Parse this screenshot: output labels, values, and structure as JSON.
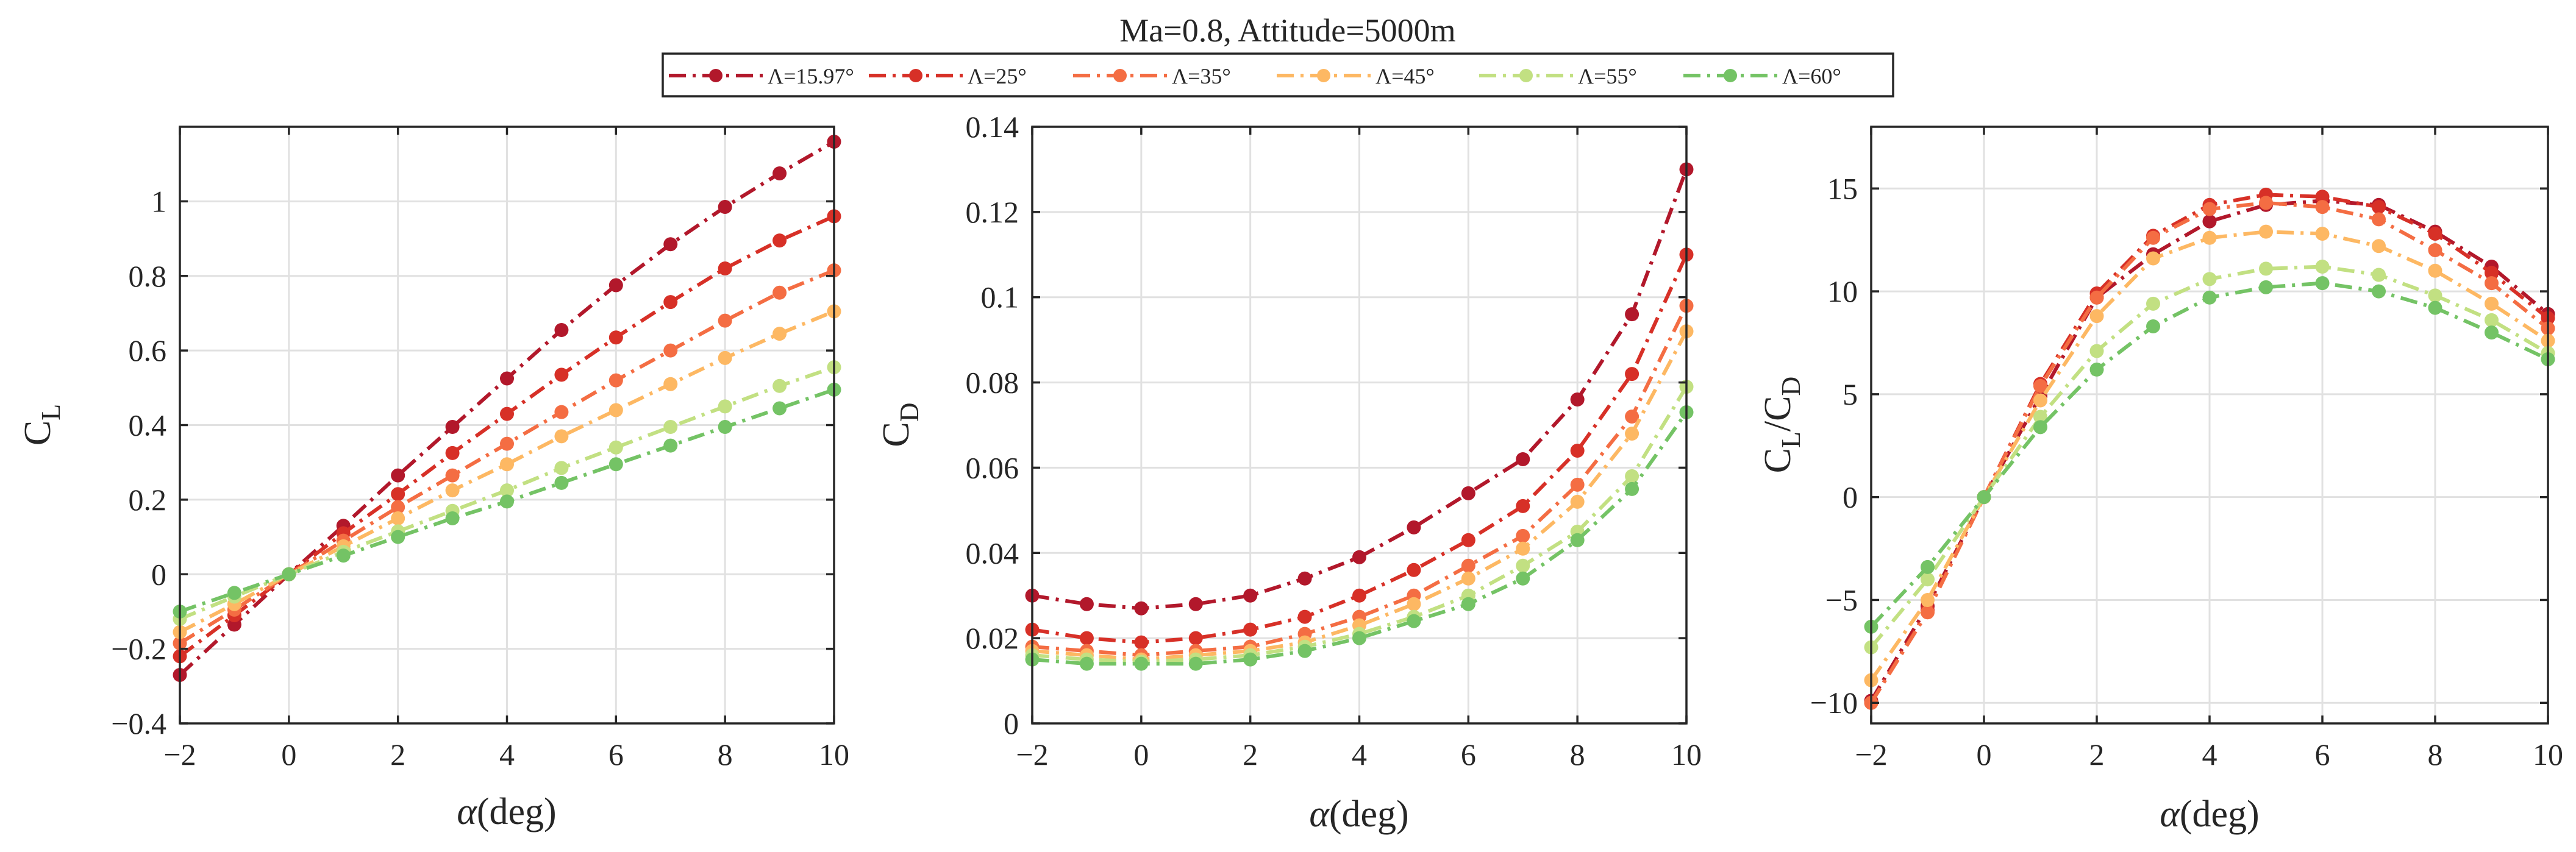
{
  "figure_title": "Ma=0.8, Attitude=5000m",
  "legend": {
    "entries": [
      {
        "label": "Λ=15.97°",
        "color": "#b2182b"
      },
      {
        "label": "Λ=25°",
        "color": "#d73027"
      },
      {
        "label": "Λ=35°",
        "color": "#f46d43"
      },
      {
        "label": "Λ=45°",
        "color": "#fdb863"
      },
      {
        "label": "Λ=55°",
        "color": "#c2e082"
      },
      {
        "label": "Λ=60°",
        "color": "#74c365"
      }
    ]
  },
  "chart_data": [
    {
      "type": "line",
      "id": "cl",
      "title": "",
      "xlabel": "α(deg)",
      "ylabel_main": "C",
      "ylabel_sub": "L",
      "xlim": [
        -2,
        10
      ],
      "ylim": [
        -0.4,
        1.2
      ],
      "xticks": [
        -2,
        0,
        2,
        4,
        6,
        8,
        10
      ],
      "xtick_labels": [
        "−2",
        "0",
        "2",
        "4",
        "6",
        "8",
        "10"
      ],
      "yticks": [
        -0.4,
        -0.2,
        0,
        0.2,
        0.4,
        0.6,
        0.8,
        1
      ],
      "ytick_labels": [
        "−0.4",
        "−0.2",
        "0",
        "0.2",
        "0.4",
        "0.6",
        "0.8",
        "1"
      ],
      "grid": true,
      "x": [
        -2,
        -1,
        0,
        1,
        2,
        3,
        4,
        5,
        6,
        7,
        8,
        9,
        10
      ],
      "series": [
        {
          "name": "Λ=15.97°",
          "values": [
            -0.27,
            -0.135,
            0,
            0.13,
            0.265,
            0.395,
            0.525,
            0.655,
            0.775,
            0.885,
            0.985,
            1.075,
            1.16
          ]
        },
        {
          "name": "Λ=25°",
          "values": [
            -0.22,
            -0.11,
            0,
            0.11,
            0.215,
            0.325,
            0.43,
            0.535,
            0.635,
            0.73,
            0.82,
            0.895,
            0.96
          ]
        },
        {
          "name": "Λ=35°",
          "values": [
            -0.185,
            -0.095,
            0,
            0.09,
            0.18,
            0.265,
            0.35,
            0.435,
            0.52,
            0.6,
            0.68,
            0.755,
            0.815
          ]
        },
        {
          "name": "Λ=45°",
          "values": [
            -0.155,
            -0.08,
            0,
            0.075,
            0.15,
            0.225,
            0.295,
            0.37,
            0.44,
            0.51,
            0.58,
            0.645,
            0.705
          ]
        },
        {
          "name": "Λ=55°",
          "values": [
            -0.12,
            -0.06,
            0,
            0.06,
            0.115,
            0.17,
            0.225,
            0.285,
            0.34,
            0.395,
            0.45,
            0.505,
            0.555
          ]
        },
        {
          "name": "Λ=60°",
          "values": [
            -0.1,
            -0.05,
            0,
            0.05,
            0.1,
            0.15,
            0.195,
            0.245,
            0.295,
            0.345,
            0.395,
            0.445,
            0.495
          ]
        }
      ]
    },
    {
      "type": "line",
      "id": "cd",
      "title": "",
      "xlabel": "α(deg)",
      "ylabel_main": "C",
      "ylabel_sub": "D",
      "xlim": [
        -2,
        10
      ],
      "ylim": [
        0,
        0.14
      ],
      "xticks": [
        -2,
        0,
        2,
        4,
        6,
        8,
        10
      ],
      "xtick_labels": [
        "−2",
        "0",
        "2",
        "4",
        "6",
        "8",
        "10"
      ],
      "yticks": [
        0,
        0.02,
        0.04,
        0.06,
        0.08,
        0.1,
        0.12,
        0.14
      ],
      "ytick_labels": [
        "0",
        "0.02",
        "0.04",
        "0.06",
        "0.08",
        "0.1",
        "0.12",
        "0.14"
      ],
      "grid": true,
      "x": [
        -2,
        -1,
        0,
        1,
        2,
        3,
        4,
        5,
        6,
        7,
        8,
        9,
        10
      ],
      "series": [
        {
          "name": "Λ=15.97°",
          "values": [
            0.03,
            0.028,
            0.027,
            0.028,
            0.03,
            0.034,
            0.039,
            0.046,
            0.054,
            0.062,
            0.076,
            0.096,
            0.13
          ]
        },
        {
          "name": "Λ=25°",
          "values": [
            0.022,
            0.02,
            0.019,
            0.02,
            0.022,
            0.025,
            0.03,
            0.036,
            0.043,
            0.051,
            0.064,
            0.082,
            0.11
          ]
        },
        {
          "name": "Λ=35°",
          "values": [
            0.018,
            0.017,
            0.016,
            0.017,
            0.018,
            0.021,
            0.025,
            0.03,
            0.037,
            0.044,
            0.056,
            0.072,
            0.098
          ]
        },
        {
          "name": "Λ=45°",
          "values": [
            0.017,
            0.016,
            0.015,
            0.016,
            0.017,
            0.019,
            0.023,
            0.028,
            0.034,
            0.041,
            0.052,
            0.068,
            0.092
          ]
        },
        {
          "name": "Λ=55°",
          "values": [
            0.016,
            0.015,
            0.0145,
            0.015,
            0.016,
            0.018,
            0.021,
            0.025,
            0.03,
            0.037,
            0.045,
            0.058,
            0.079
          ]
        },
        {
          "name": "Λ=60°",
          "values": [
            0.015,
            0.014,
            0.014,
            0.014,
            0.015,
            0.017,
            0.02,
            0.024,
            0.028,
            0.034,
            0.043,
            0.055,
            0.073
          ]
        }
      ]
    },
    {
      "type": "line",
      "id": "ld",
      "title": "",
      "xlabel": "α(deg)",
      "ylabel_main": "C",
      "ylabel_sub": "L",
      "ylabel_slash": "/C",
      "ylabel_sub2": "D",
      "xlim": [
        -2,
        10
      ],
      "ylim": [
        -11,
        18
      ],
      "xticks": [
        -2,
        0,
        2,
        4,
        6,
        8,
        10
      ],
      "xtick_labels": [
        "−2",
        "0",
        "2",
        "4",
        "6",
        "8",
        "10"
      ],
      "yticks": [
        -10,
        -5,
        0,
        5,
        10,
        15
      ],
      "ytick_labels": [
        "−10",
        "−5",
        "0",
        "5",
        "10",
        "15"
      ],
      "grid": true,
      "x": [
        -2,
        -1,
        0,
        1,
        2,
        3,
        4,
        5,
        6,
        7,
        8,
        9,
        10
      ],
      "series": [
        {
          "name": "Λ=15.97°",
          "values": [
            -9.9,
            -5.3,
            0,
            4.9,
            9.7,
            11.8,
            13.4,
            14.2,
            14.4,
            14.2,
            12.9,
            11.2,
            8.9
          ]
        },
        {
          "name": "Λ=25°",
          "values": [
            -10.0,
            -5.5,
            0,
            5.5,
            9.9,
            12.7,
            14.2,
            14.7,
            14.6,
            14.1,
            12.8,
            10.9,
            8.7
          ]
        },
        {
          "name": "Λ=35°",
          "values": [
            -10.0,
            -5.6,
            0,
            5.4,
            9.7,
            12.6,
            14.0,
            14.3,
            14.1,
            13.5,
            12.0,
            10.4,
            8.2
          ]
        },
        {
          "name": "Λ=45°",
          "values": [
            -8.9,
            -5.0,
            0,
            4.7,
            8.8,
            11.6,
            12.6,
            12.9,
            12.8,
            12.2,
            11.0,
            9.4,
            7.6
          ]
        },
        {
          "name": "Λ=55°",
          "values": [
            -7.3,
            -4.0,
            0,
            3.9,
            7.1,
            9.4,
            10.6,
            11.1,
            11.2,
            10.8,
            9.8,
            8.6,
            7.0
          ]
        },
        {
          "name": "Λ=60°",
          "values": [
            -6.3,
            -3.4,
            0,
            3.4,
            6.2,
            8.3,
            9.7,
            10.2,
            10.4,
            10.0,
            9.2,
            8.0,
            6.7
          ]
        }
      ]
    }
  ]
}
